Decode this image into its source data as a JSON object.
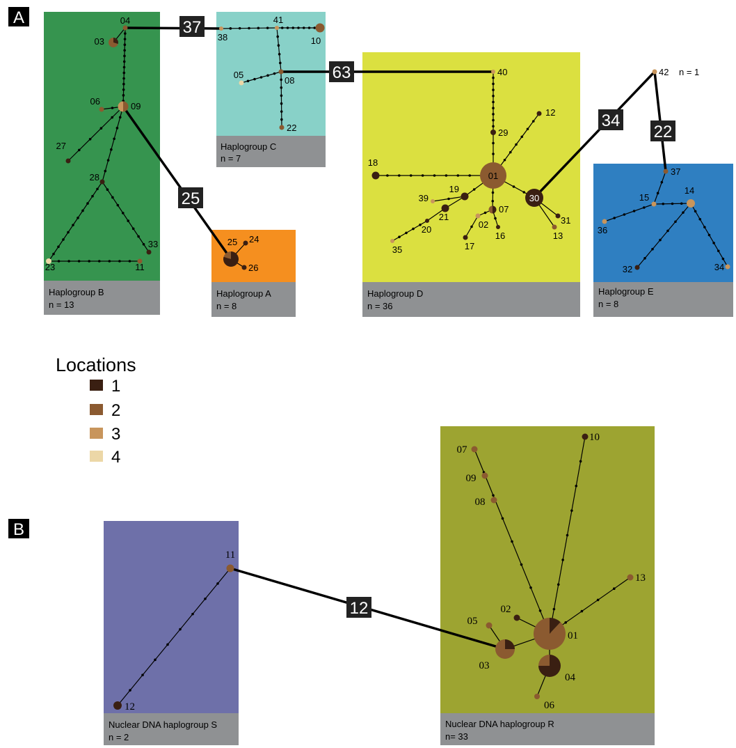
{
  "panel_a": {
    "label": "A",
    "groups": {
      "B": {
        "title": "Haplogroup B",
        "count": "n = 13"
      },
      "C": {
        "title": "Haplogroup C",
        "count": "n = 7"
      },
      "A": {
        "title": "Haplogroup A",
        "count": "n = 8"
      },
      "D": {
        "title": "Haplogroup D",
        "count": "n = 36"
      },
      "E": {
        "title": "Haplogroup E",
        "count": "n = 8"
      }
    },
    "link_steps": {
      "b_c": "37",
      "c_d": "63",
      "b_a": "25",
      "d_42": "34",
      "42_e": "22"
    },
    "singleton_note": "n = 1",
    "haplotypes": [
      "01",
      "02",
      "03",
      "04",
      "05",
      "06",
      "07",
      "08",
      "09",
      "10",
      "11",
      "12",
      "13",
      "14",
      "15",
      "16",
      "17",
      "18",
      "19",
      "20",
      "21",
      "22",
      "23",
      "24",
      "25",
      "26",
      "27",
      "28",
      "29",
      "30",
      "31",
      "32",
      "33",
      "34",
      "35",
      "36",
      "37",
      "38",
      "39",
      "40",
      "41",
      "42"
    ]
  },
  "legend": {
    "title": "Locations",
    "items": [
      {
        "label": "1",
        "color": "#3a1f12"
      },
      {
        "label": "2",
        "color": "#8b5a30"
      },
      {
        "label": "3",
        "color": "#c8955c"
      },
      {
        "label": "4",
        "color": "#ecd7a7"
      }
    ]
  },
  "panel_b": {
    "label": "B",
    "groups": {
      "S": {
        "title": "Nuclear DNA haplogroup S",
        "count": "n = 2"
      },
      "R": {
        "title": "Nuclear DNA haplogroup R",
        "count": "n= 33"
      }
    },
    "link_steps": {
      "s_r": "12"
    },
    "haplotypes": [
      "01",
      "02",
      "03",
      "04",
      "05",
      "06",
      "07",
      "08",
      "09",
      "10",
      "11",
      "12",
      "13"
    ]
  },
  "colors": {
    "group_B": "#36944f",
    "group_C": "#88d1c8",
    "group_A": "#f58f1f",
    "group_D": "#dbe040",
    "group_E": "#2f7fc1",
    "group_S": "#6e70a9",
    "group_R": "#9da431",
    "label_bar": "#8f9193",
    "loc1": "#3a1f12",
    "loc2": "#8b5a30",
    "loc3": "#c8955c",
    "loc4": "#ecd7a7"
  }
}
